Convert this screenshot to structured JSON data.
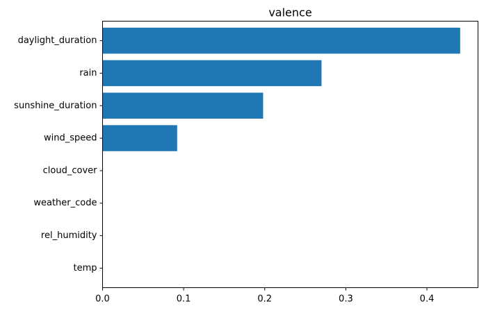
{
  "chart_data": {
    "type": "bar",
    "orientation": "horizontal",
    "title": "valence",
    "xlabel": "",
    "ylabel": "",
    "categories": [
      "daylight_duration",
      "rain",
      "sunshine_duration",
      "wind_speed",
      "cloud_cover",
      "weather_code",
      "rel_humidity",
      "temp"
    ],
    "values": [
      0.441,
      0.27,
      0.198,
      0.092,
      0.0,
      0.0,
      0.0,
      0.0
    ],
    "xlim": [
      0.0,
      0.463
    ],
    "xticks": [
      0.0,
      0.1,
      0.2,
      0.3,
      0.4
    ],
    "xtick_labels": [
      "0.0",
      "0.1",
      "0.2",
      "0.3",
      "0.4"
    ],
    "bar_color": "#1f77b4",
    "grid": false,
    "legend": "none"
  }
}
